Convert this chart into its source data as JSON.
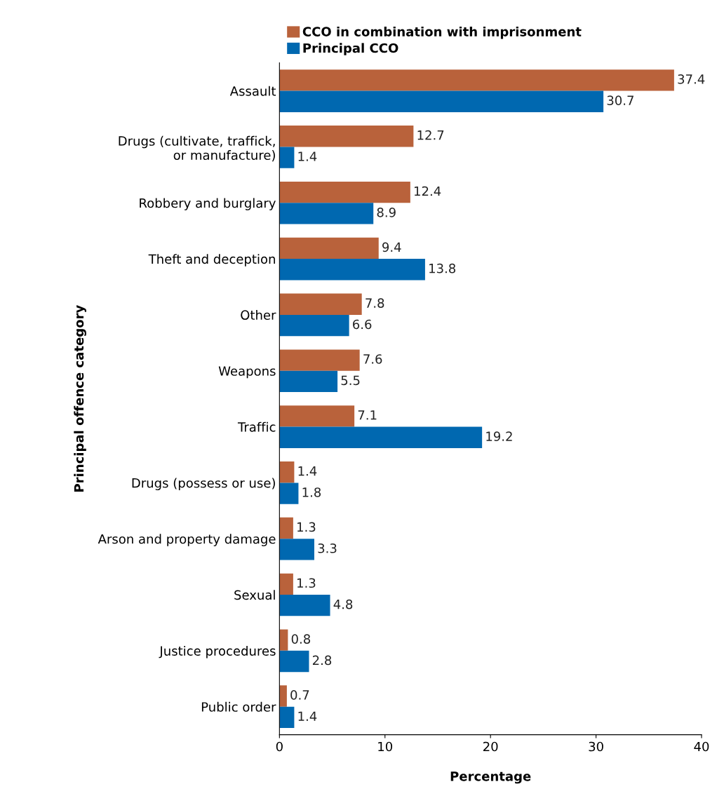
{
  "chart_data": {
    "type": "bar",
    "orientation": "horizontal",
    "xlabel": "Percentage",
    "ylabel": "Principal offence category",
    "categories": [
      "Assault",
      "Drugs (cultivate, traffick,\nor manufacture)",
      "Robbery and burglary",
      "Theft and deception",
      "Other",
      "Weapons",
      "Traffic",
      "Drugs (possess or use)",
      "Arson and property damage",
      "Sexual",
      "Justice procedures",
      "Public order"
    ],
    "series": [
      {
        "name": "CCO in combination with imprisonment",
        "color": "#b9623b",
        "values": [
          37.4,
          12.7,
          12.4,
          9.4,
          7.8,
          7.6,
          7.1,
          1.4,
          1.3,
          1.3,
          0.8,
          0.7
        ]
      },
      {
        "name": "Principal CCO",
        "color": "#0068b0",
        "values": [
          30.7,
          1.4,
          8.9,
          13.8,
          6.6,
          5.5,
          19.2,
          1.8,
          3.3,
          4.8,
          2.8,
          1.4
        ]
      }
    ],
    "xlim": [
      0,
      40
    ],
    "xticks": [
      0,
      10,
      20,
      30,
      40
    ],
    "data_labels": true,
    "grid": false,
    "legend": "top"
  }
}
